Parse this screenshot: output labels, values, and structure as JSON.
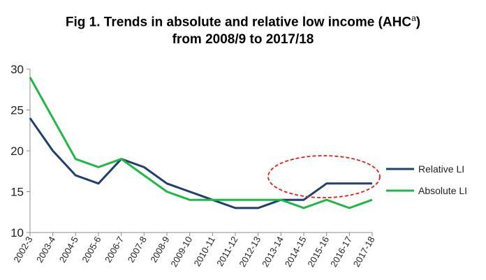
{
  "chart_data": {
    "type": "line",
    "title_line1": "Fig 1. Trends in absolute and relative low income (AHC",
    "title_sup": "a",
    "title_close": ")",
    "title_line2": "from 2008/9 to 2017/18",
    "xlabel": "",
    "ylabel": "",
    "ylim": [
      10,
      30
    ],
    "yticks": [
      10,
      15,
      20,
      25,
      30
    ],
    "grid": false,
    "legend_position": "right",
    "categories": [
      "2002-3",
      "2003-4",
      "2004-5",
      "2005-6",
      "2006-7",
      "2007-8",
      "2008-9",
      "2009-10",
      "2010-11",
      "2011-12",
      "2012-13",
      "2013-14",
      "2014-15",
      "2015-16",
      "2016-17",
      "2017-18"
    ],
    "series": [
      {
        "name": "Relative LI",
        "color": "#1f3f6e",
        "values": [
          24,
          20,
          17,
          16,
          19,
          18,
          16,
          15,
          14,
          13,
          13,
          14,
          14,
          16,
          16,
          16
        ]
      },
      {
        "name": "Absolute LI",
        "color": "#1fb845",
        "values": [
          29,
          24,
          19,
          18,
          19,
          17,
          15,
          14,
          14,
          14,
          14,
          14,
          13,
          14,
          13,
          14
        ]
      }
    ],
    "annotation": {
      "shape": "dashed-ellipse",
      "color": "#e0201b",
      "note_categories": [
        "2014-15",
        "2017-18"
      ]
    }
  }
}
